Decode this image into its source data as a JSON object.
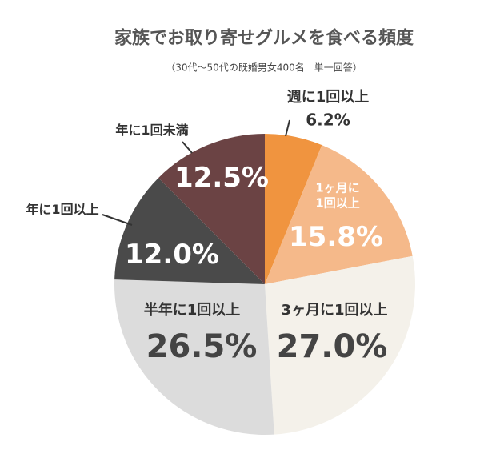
{
  "chart_data": {
    "type": "pie",
    "title": "家族でお取り寄せグルメを食べる頻度",
    "subtitle": "（30代〜50代の既婚男女400名　単一回答）",
    "categories": [
      "週に1回以上",
      "1ヶ月に\n1回以上",
      "3ヶ月に1回以上",
      "半年に1回以上",
      "年に1回以上",
      "年に1回未満"
    ],
    "values": [
      6.2,
      15.8,
      27.0,
      26.5,
      12.0,
      12.5
    ],
    "value_labels": [
      "6.2%",
      "15.8%",
      "27.0%",
      "26.5%",
      "12.0%",
      "12.5%"
    ],
    "colors": [
      "#f0943f",
      "#f5b98a",
      "#f4f1ea",
      "#dcdcdc",
      "#4a4a4a",
      "#6b4344"
    ]
  }
}
